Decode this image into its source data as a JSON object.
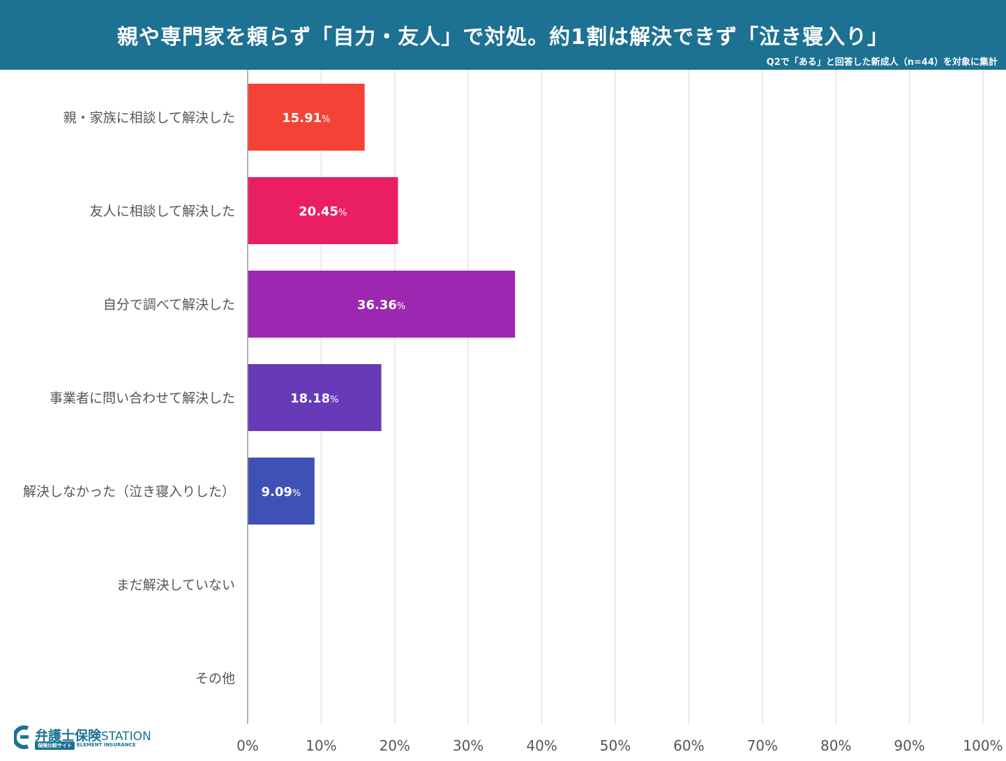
{
  "header": {
    "title": "親や専門家を頼らず「自力・友人」で対処。約1割は解決できず「泣き寝入り」",
    "subtitle": "Q2で「ある」と回答した新成人（n=44）を対象に集計"
  },
  "logo": {
    "name": "弁護士保険",
    "station": "STATION",
    "tag": "保険比較サイト",
    "sub": "ELEMENT INSURANCE"
  },
  "colors": {
    "header_bg": "#1d7192",
    "grid": "#e2e2e2",
    "axis": "#9a9a9a"
  },
  "chart_data": {
    "type": "bar",
    "orientation": "horizontal",
    "categories": [
      "親・家族に相談して解決した",
      "友人に相談して解決した",
      "自分で調べて解決した",
      "事業者に問い合わせて解決した",
      "解決しなかった（泣き寝入りした）",
      "まだ解決していない",
      "その他"
    ],
    "values": [
      15.91,
      20.45,
      36.36,
      18.18,
      9.09,
      0,
      0
    ],
    "value_labels": [
      "15.91",
      "20.45",
      "36.36",
      "18.18",
      "9.09",
      "",
      ""
    ],
    "unit": "%",
    "bar_colors": [
      "#f44336",
      "#e91e63",
      "#9c27b0",
      "#673ab7",
      "#3f51b5",
      "#3f51b5",
      "#3f51b5"
    ],
    "xlim": [
      0,
      100
    ],
    "xticks": [
      0,
      10,
      20,
      30,
      40,
      50,
      60,
      70,
      80,
      90,
      100
    ],
    "xtick_labels": [
      "0%",
      "10%",
      "20%",
      "30%",
      "40%",
      "50%",
      "60%",
      "70%",
      "80%",
      "90%",
      "100%"
    ],
    "grid": true
  }
}
